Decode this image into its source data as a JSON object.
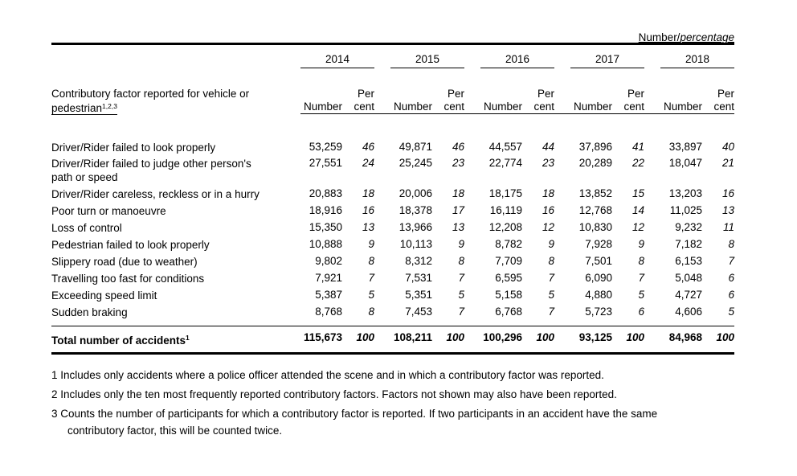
{
  "units_label": {
    "number": "Number/",
    "percentage": "percentage"
  },
  "years": [
    "2014",
    "2015",
    "2016",
    "2017",
    "2018"
  ],
  "header": {
    "factor_line1": "Contributory factor reported for vehicle or",
    "factor_line2": "pedestrian",
    "factor_sup": "1,2,3",
    "number": "Number",
    "per": "Per",
    "cent": "cent"
  },
  "rows": [
    {
      "label": [
        "Driver/Rider failed to look properly"
      ],
      "values": [
        [
          "53,259",
          "46"
        ],
        [
          "49,871",
          "46"
        ],
        [
          "44,557",
          "44"
        ],
        [
          "37,896",
          "41"
        ],
        [
          "33,897",
          "40"
        ]
      ]
    },
    {
      "label": [
        "Driver/Rider failed to judge other person's",
        "path or speed"
      ],
      "values": [
        [
          "27,551",
          "24"
        ],
        [
          "25,245",
          "23"
        ],
        [
          "22,774",
          "23"
        ],
        [
          "20,289",
          "22"
        ],
        [
          "18,047",
          "21"
        ]
      ]
    },
    {
      "label": [
        "Driver/Rider careless, reckless or in a hurry"
      ],
      "values": [
        [
          "20,883",
          "18"
        ],
        [
          "20,006",
          "18"
        ],
        [
          "18,175",
          "18"
        ],
        [
          "13,852",
          "15"
        ],
        [
          "13,203",
          "16"
        ]
      ]
    },
    {
      "label": [
        "Poor turn or manoeuvre"
      ],
      "values": [
        [
          "18,916",
          "16"
        ],
        [
          "18,378",
          "17"
        ],
        [
          "16,119",
          "16"
        ],
        [
          "12,768",
          "14"
        ],
        [
          "11,025",
          "13"
        ]
      ]
    },
    {
      "label": [
        "Loss of control"
      ],
      "values": [
        [
          "15,350",
          "13"
        ],
        [
          "13,966",
          "13"
        ],
        [
          "12,208",
          "12"
        ],
        [
          "10,830",
          "12"
        ],
        [
          "9,232",
          "11"
        ]
      ]
    },
    {
      "label": [
        "Pedestrian failed to look properly"
      ],
      "values": [
        [
          "10,888",
          "9"
        ],
        [
          "10,113",
          "9"
        ],
        [
          "8,782",
          "9"
        ],
        [
          "7,928",
          "9"
        ],
        [
          "7,182",
          "8"
        ]
      ]
    },
    {
      "label": [
        "Slippery road (due to weather)"
      ],
      "values": [
        [
          "9,802",
          "8"
        ],
        [
          "8,312",
          "8"
        ],
        [
          "7,709",
          "8"
        ],
        [
          "7,501",
          "8"
        ],
        [
          "6,153",
          "7"
        ]
      ]
    },
    {
      "label": [
        "Travelling too fast for conditions"
      ],
      "values": [
        [
          "7,921",
          "7"
        ],
        [
          "7,531",
          "7"
        ],
        [
          "6,595",
          "7"
        ],
        [
          "6,090",
          "7"
        ],
        [
          "5,048",
          "6"
        ]
      ]
    },
    {
      "label": [
        "Exceeding speed limit"
      ],
      "values": [
        [
          "5,387",
          "5"
        ],
        [
          "5,351",
          "5"
        ],
        [
          "5,158",
          "5"
        ],
        [
          "4,880",
          "5"
        ],
        [
          "4,727",
          "6"
        ]
      ]
    },
    {
      "label": [
        "Sudden braking"
      ],
      "values": [
        [
          "8,768",
          "8"
        ],
        [
          "7,453",
          "7"
        ],
        [
          "6,768",
          "7"
        ],
        [
          "5,723",
          "6"
        ],
        [
          "4,606",
          "5"
        ]
      ]
    }
  ],
  "total": {
    "label": "Total number of accidents",
    "sup": "1",
    "values": [
      [
        "115,673",
        "100"
      ],
      [
        "108,211",
        "100"
      ],
      [
        "100,296",
        "100"
      ],
      [
        "93,125",
        "100"
      ],
      [
        "84,968",
        "100"
      ]
    ]
  },
  "footnotes": [
    [
      "1 Includes only accidents where a police officer attended the scene and in which a contributory factor was reported."
    ],
    [
      "2 Includes only the ten most frequently reported contributory factors. Factors not shown may also have been reported."
    ],
    [
      "3 Counts the number of participants for which a contributory factor is reported. If two participants in an accident have the same",
      "contributory factor, this will be counted twice."
    ]
  ]
}
